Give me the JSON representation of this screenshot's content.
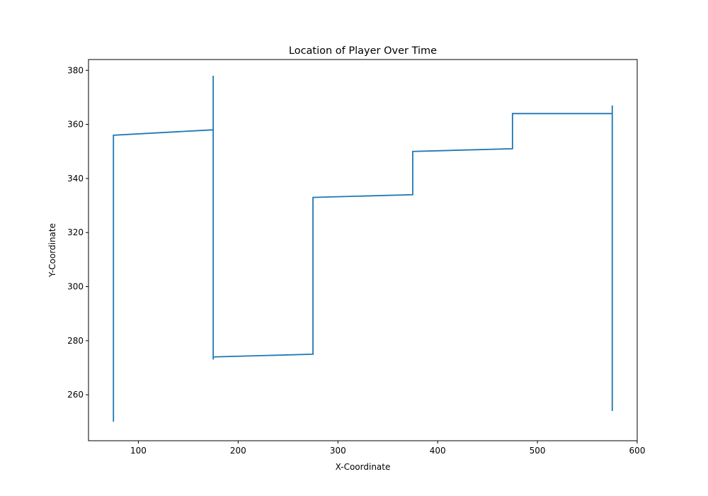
{
  "chart_data": {
    "type": "line",
    "title": "Location of Player Over Time",
    "xlabel": "X-Coordinate",
    "ylabel": "Y-Coordinate",
    "xlim": [
      50,
      600
    ],
    "ylim": [
      243,
      384
    ],
    "xticks": [
      100,
      200,
      300,
      400,
      500,
      600
    ],
    "yticks": [
      260,
      280,
      300,
      320,
      340,
      360,
      380
    ],
    "grid": false,
    "series": [
      {
        "color": "#1f77b4",
        "x": [
          75,
          75,
          175,
          175,
          175,
          175,
          275,
          275,
          375,
          375,
          475,
          475,
          575,
          575,
          575,
          575
        ],
        "y": [
          250,
          356,
          358,
          378,
          273,
          274,
          275,
          333,
          334,
          350,
          351,
          364,
          364,
          367,
          254,
          364
        ]
      }
    ]
  }
}
